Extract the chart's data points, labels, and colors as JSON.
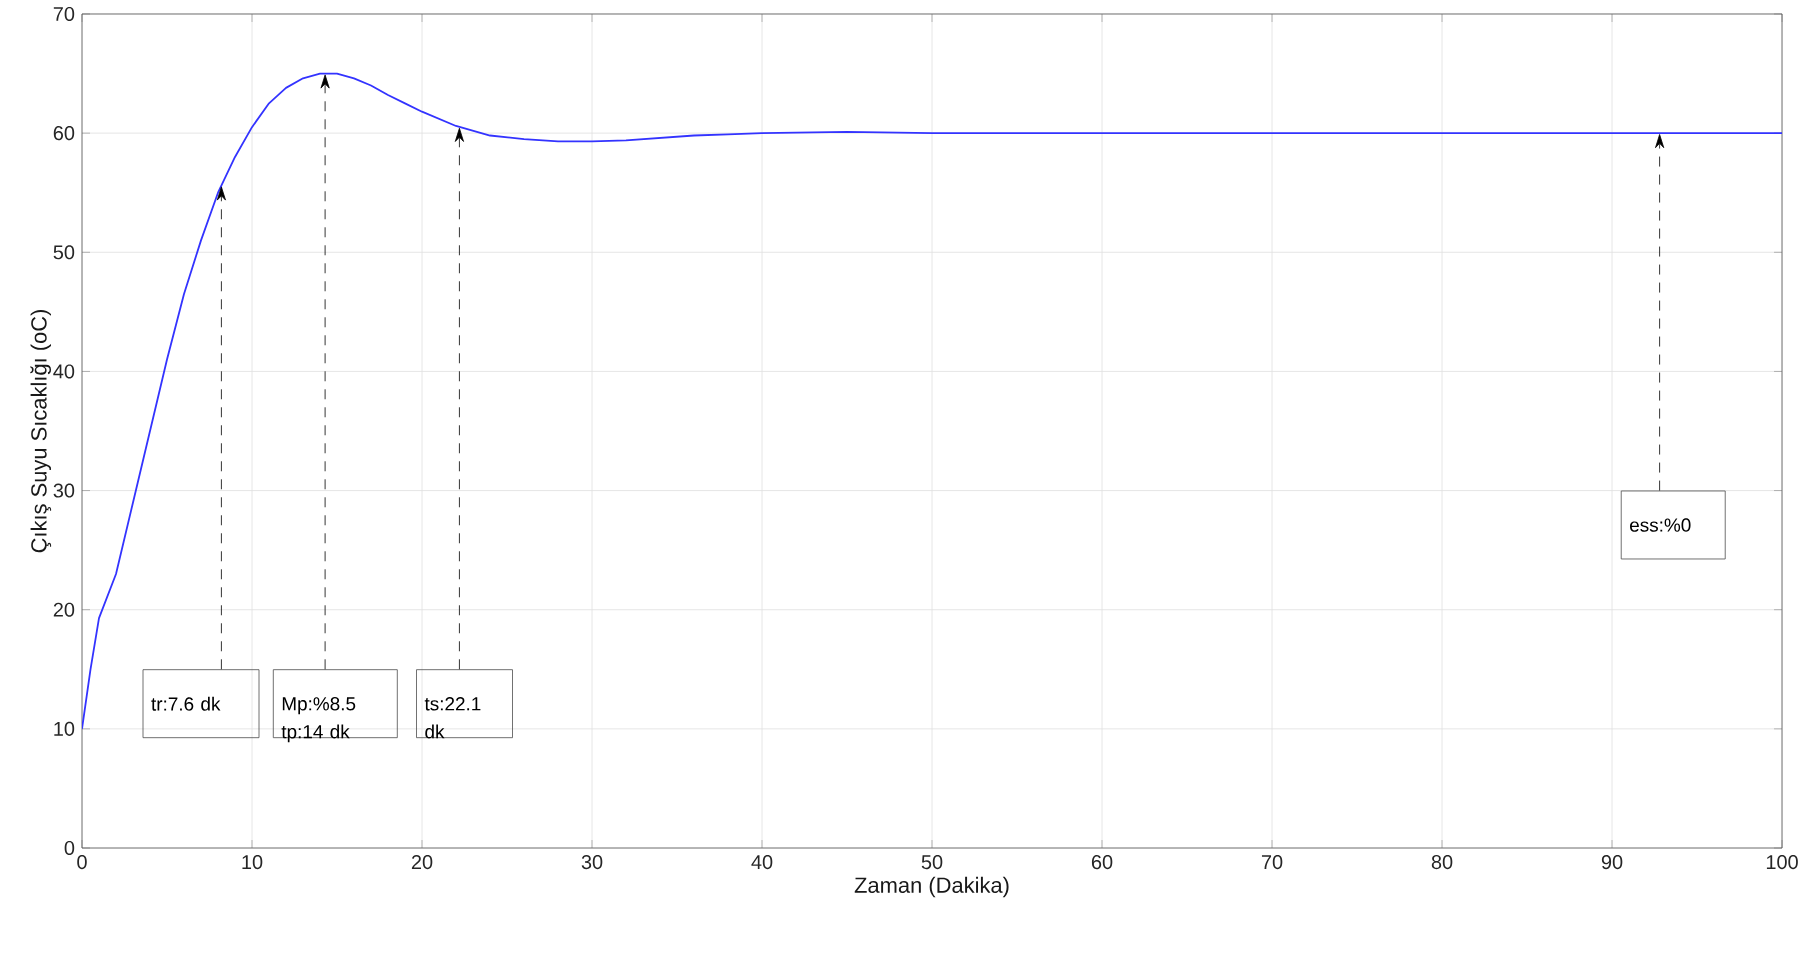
{
  "chart_data": {
    "type": "line",
    "xlabel": "Zaman (Dakika)",
    "ylabel": "Çıkış Suyu Sıcaklığı (oC)",
    "series": [
      {
        "color": "#3333ff",
        "x": [
          0,
          0.5,
          1,
          2,
          3,
          4,
          5,
          6,
          7,
          8,
          9,
          10,
          11,
          12,
          13,
          14,
          15,
          16,
          17,
          18,
          19,
          20,
          22,
          24,
          26,
          28,
          30,
          32,
          34,
          36,
          38,
          40,
          45,
          50,
          60,
          70,
          80,
          90,
          100
        ],
        "values": [
          10,
          15,
          19.3,
          23,
          29,
          35,
          41,
          46.5,
          51,
          55,
          58,
          60.5,
          62.5,
          63.8,
          64.6,
          65,
          65,
          64.6,
          64,
          63.2,
          62.5,
          61.8,
          60.6,
          59.8,
          59.5,
          59.3,
          59.3,
          59.4,
          59.6,
          59.8,
          59.9,
          60,
          60.1,
          60,
          60,
          60,
          60,
          60,
          60
        ]
      }
    ],
    "xlim": [
      0,
      100
    ],
    "ylim": [
      0,
      70
    ],
    "xticks": [
      0,
      10,
      20,
      30,
      40,
      50,
      60,
      70,
      80,
      90,
      100
    ],
    "yticks": [
      0,
      10,
      20,
      30,
      40,
      50,
      60,
      70
    ],
    "grid": true,
    "marker": "none",
    "line_style": "solid",
    "annotations": [
      "tr:7.6 dk",
      "Mp:%8.5 tp:14 dk",
      "ts:22.1 dk",
      "ess:%0"
    ]
  }
}
